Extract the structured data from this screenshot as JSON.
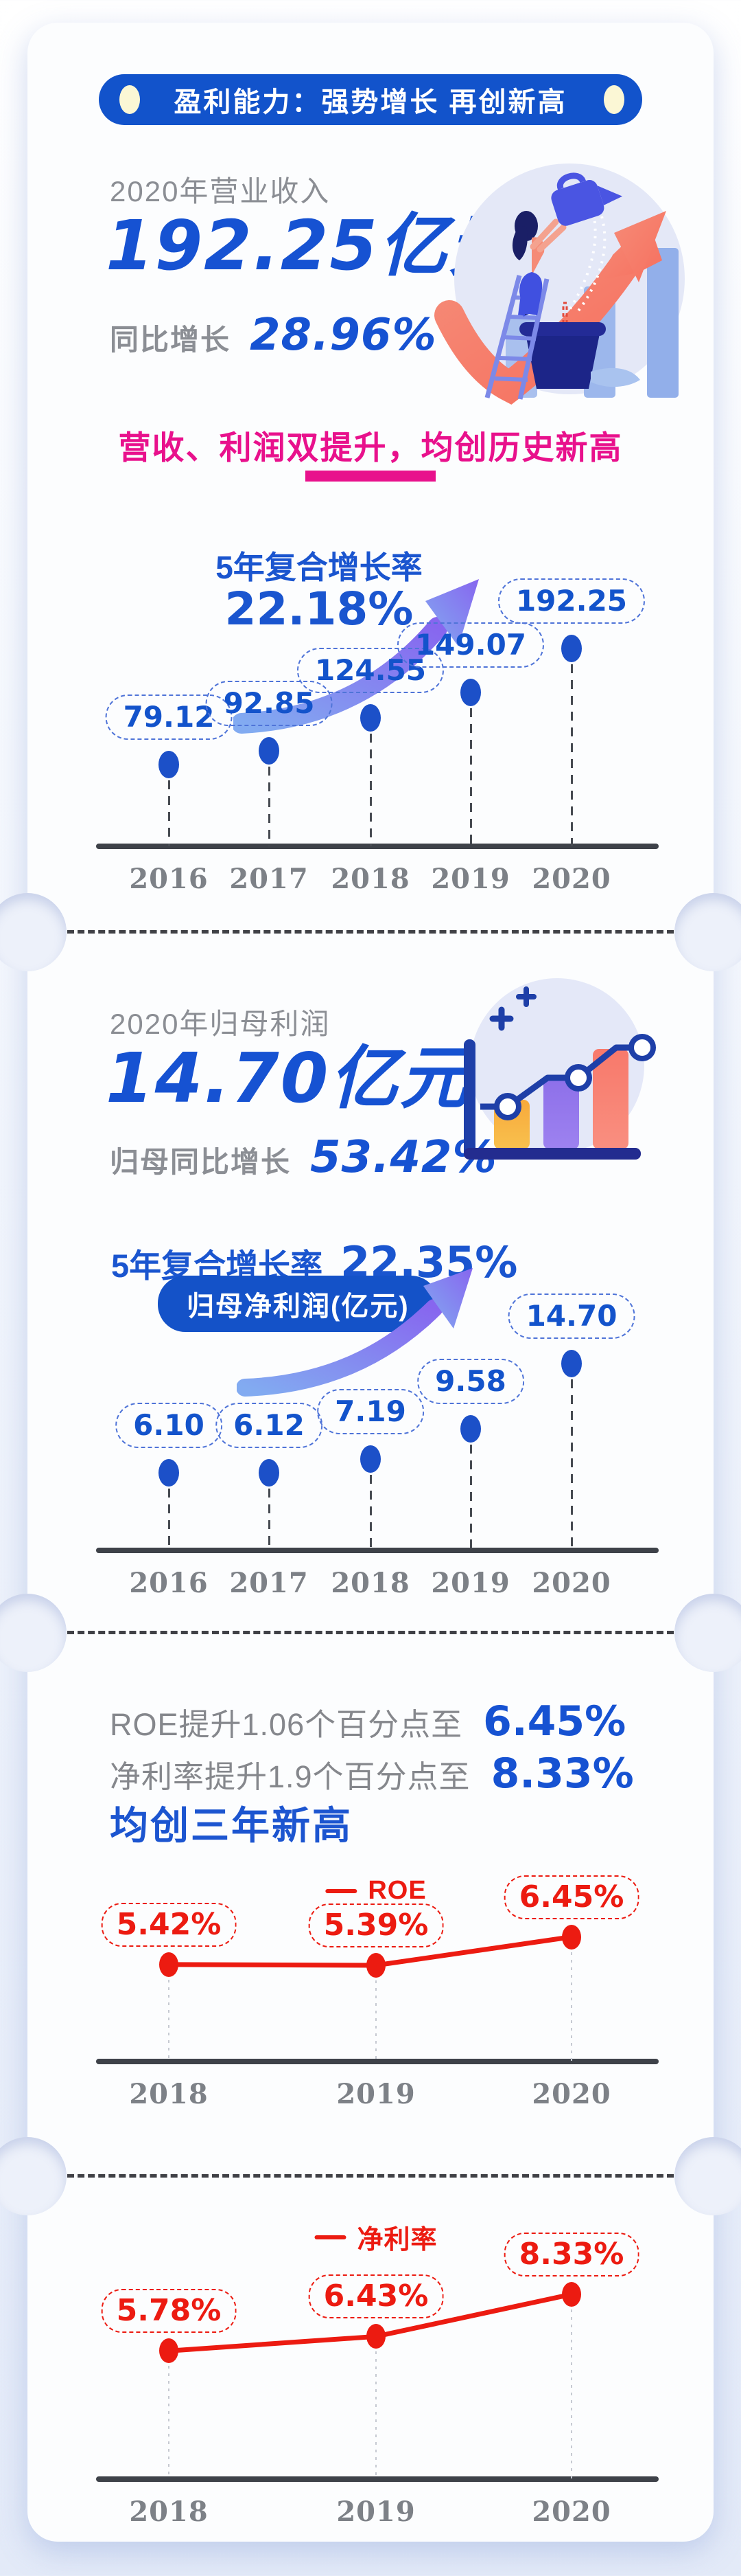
{
  "header": {
    "title": "盈利能力：强势增长  再创新高"
  },
  "revenue": {
    "label": "2020年营业收入",
    "value": "192.25亿元",
    "growth_label": "同比增长",
    "growth_value": "28.96%"
  },
  "banner": {
    "text": "营收、利润双提升，均创历史新高"
  },
  "profit": {
    "label": "2020年归母利润",
    "value": "14.70亿元",
    "growth_label": "归母同比增长",
    "growth_value": "53.42%"
  },
  "metrics": {
    "roe_line_prefix": "ROE提升1.06个百分点至",
    "roe_value": "6.45%",
    "margin_line_prefix": "净利率提升1.9个百分点至",
    "margin_value": "8.33%",
    "headline": "均创三年新高"
  },
  "colors": {
    "primary_blue": "#1652D2",
    "pill_blue": "#1253CB",
    "magenta": "#E8118C",
    "line_red": "#EC1B11",
    "axis_dark": "#3E4249"
  },
  "chart_data": [
    {
      "id": "revenue_5y",
      "type": "bar",
      "style": "lollipop",
      "cagr_label": "5年复合增长率",
      "cagr_value": "22.18%",
      "unit": "亿元",
      "categories": [
        "2016",
        "2017",
        "2018",
        "2019",
        "2020"
      ],
      "values": [
        79.12,
        92.85,
        124.55,
        149.07,
        192.25
      ],
      "labels": [
        "79.12",
        "92.85",
        "124.55",
        "149.07",
        "192.25"
      ],
      "ylim": [
        0,
        210
      ],
      "grid": false,
      "legend_position": "none"
    },
    {
      "id": "profit_5y",
      "type": "bar",
      "style": "lollipop",
      "cagr_label": "5年复合增长率",
      "cagr_value": "22.35%",
      "series_label": "归母净利润(亿元)",
      "unit": "亿元",
      "categories": [
        "2016",
        "2017",
        "2018",
        "2019",
        "2020"
      ],
      "values": [
        6.1,
        6.12,
        7.19,
        9.58,
        14.7
      ],
      "labels": [
        "6.10",
        "6.12",
        "7.19",
        "9.58",
        "14.70"
      ],
      "ylim": [
        0,
        16
      ],
      "grid": false,
      "legend_position": "none"
    },
    {
      "id": "roe",
      "type": "line",
      "legend": "ROE",
      "color": "#EC1B11",
      "categories": [
        "2018",
        "2019",
        "2020"
      ],
      "values": [
        5.42,
        5.39,
        6.45
      ],
      "labels": [
        "5.42%",
        "5.39%",
        "6.45%"
      ],
      "ylim": [
        0,
        8
      ],
      "grid": false,
      "legend_position": "top"
    },
    {
      "id": "net_margin",
      "type": "line",
      "legend": "净利率",
      "color": "#EC1B11",
      "categories": [
        "2018",
        "2019",
        "2020"
      ],
      "values": [
        5.78,
        6.43,
        8.33
      ],
      "labels": [
        "5.78%",
        "6.43%",
        "8.33%"
      ],
      "ylim": [
        0,
        10
      ],
      "grid": false,
      "legend_position": "top"
    }
  ]
}
